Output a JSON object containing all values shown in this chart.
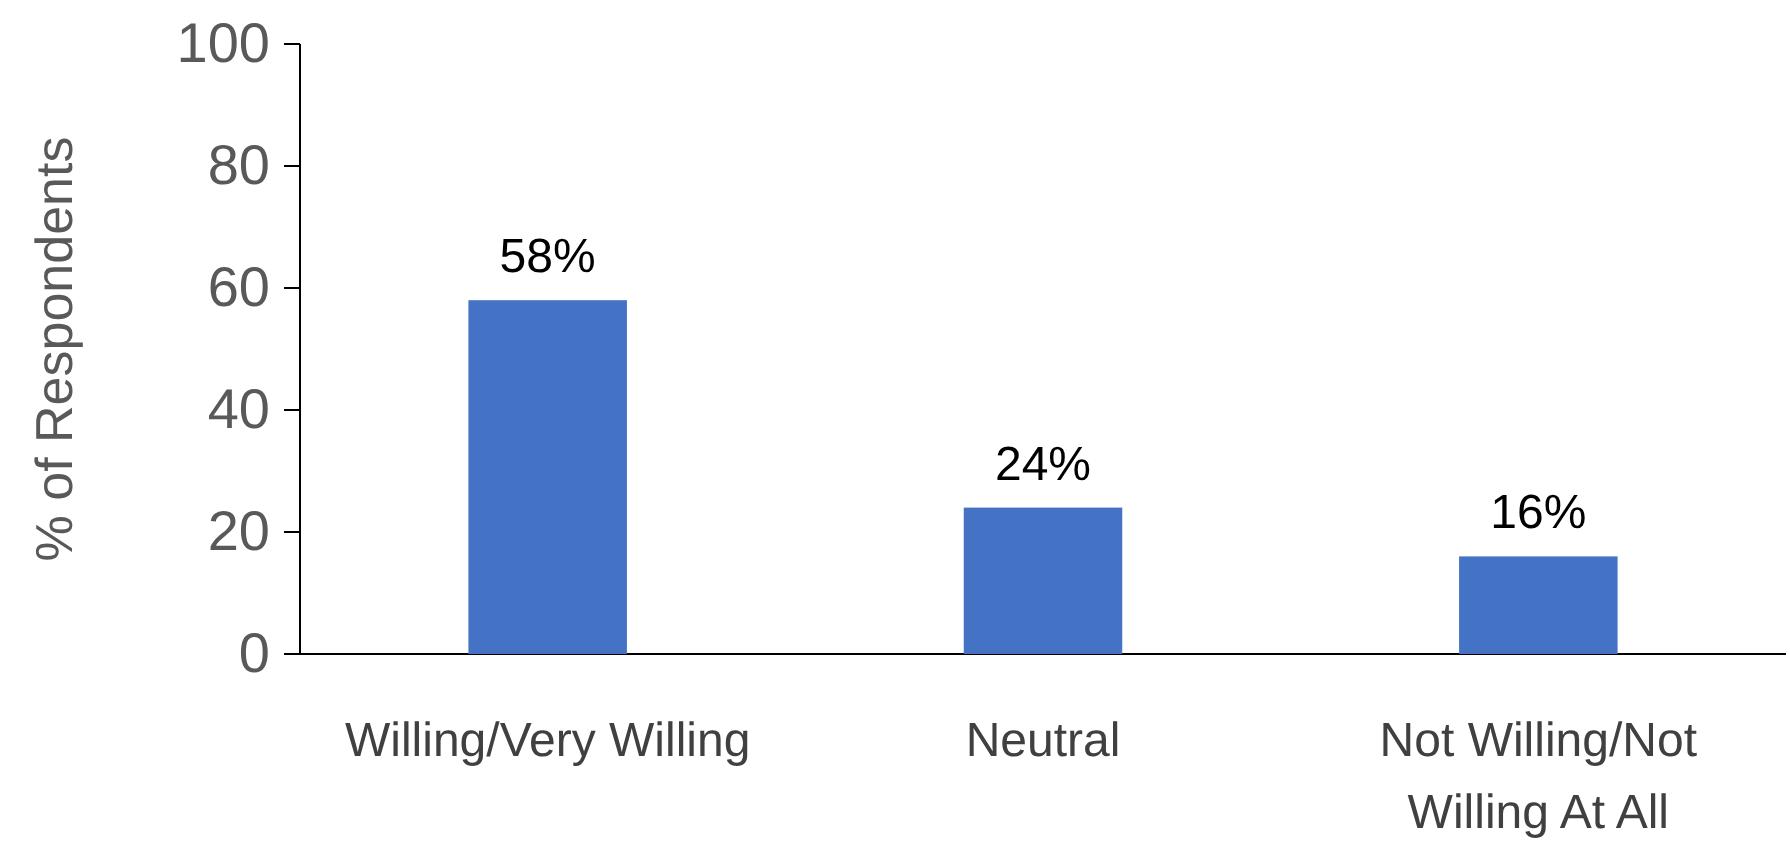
{
  "chart_data": {
    "type": "bar",
    "ylabel": "% of Respondents",
    "categories": [
      "Willing/Very Willing",
      "Neutral",
      "Not Willing/Not Willing At All"
    ],
    "values": [
      58,
      24,
      16
    ],
    "value_labels": [
      "58%",
      "24%",
      "16%"
    ],
    "color": "#4472c4",
    "ylim": [
      0,
      100
    ],
    "yticks": [
      0,
      20,
      40,
      60,
      80,
      100
    ],
    "grid": false
  }
}
